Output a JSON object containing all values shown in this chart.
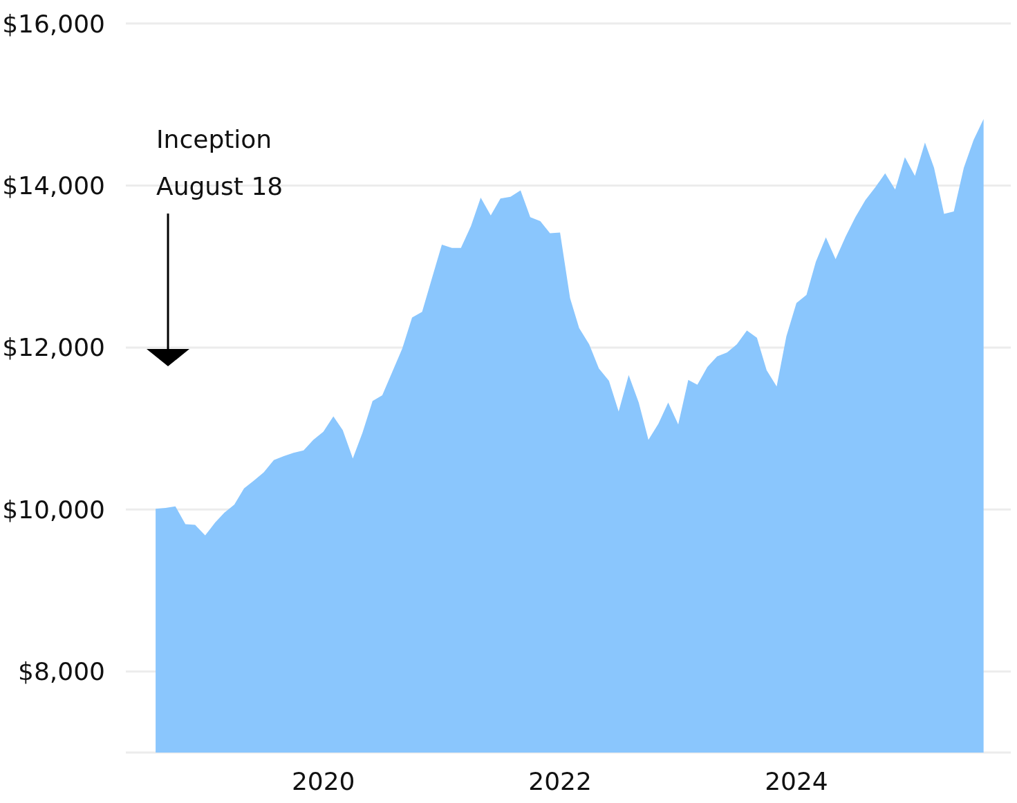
{
  "chart_data": {
    "type": "area",
    "color": "#8ac6fd",
    "x": [
      "2018-08",
      "2018-09",
      "2018-10",
      "2018-11",
      "2018-12",
      "2019-01",
      "2019-02",
      "2019-03",
      "2019-04",
      "2019-05",
      "2019-06",
      "2019-07",
      "2019-08",
      "2019-09",
      "2019-10",
      "2019-11",
      "2019-12",
      "2020-01",
      "2020-02",
      "2020-03",
      "2020-04",
      "2020-05",
      "2020-06",
      "2020-07",
      "2020-08",
      "2020-09",
      "2020-10",
      "2020-11",
      "2020-12",
      "2021-01",
      "2021-02",
      "2021-03",
      "2021-04",
      "2021-05",
      "2021-06",
      "2021-07",
      "2021-08",
      "2021-09",
      "2021-10",
      "2021-11",
      "2021-12",
      "2022-01",
      "2022-02",
      "2022-03",
      "2022-04",
      "2022-05",
      "2022-06",
      "2022-07",
      "2022-08",
      "2022-09",
      "2022-10",
      "2022-11",
      "2022-12",
      "2023-01",
      "2023-02",
      "2023-03",
      "2023-04",
      "2023-05",
      "2023-06",
      "2023-07",
      "2023-08",
      "2023-09",
      "2023-10",
      "2023-11",
      "2023-12",
      "2024-01",
      "2024-02",
      "2024-03",
      "2024-04",
      "2024-05",
      "2024-06",
      "2024-07",
      "2024-08",
      "2024-09",
      "2024-10",
      "2024-11",
      "2024-12",
      "2025-01",
      "2025-02",
      "2025-03",
      "2025-04",
      "2025-05",
      "2025-06",
      "2025-07",
      "2025-08"
    ],
    "values": [
      10010,
      10020,
      10040,
      9820,
      9810,
      9680,
      9840,
      9960,
      10060,
      10260,
      10360,
      10460,
      10610,
      10660,
      10700,
      10730,
      10860,
      10960,
      11150,
      10980,
      10630,
      10950,
      11340,
      11410,
      11700,
      11990,
      12370,
      12440,
      12850,
      13270,
      13230,
      13230,
      13500,
      13850,
      13630,
      13840,
      13860,
      13940,
      13610,
      13560,
      13410,
      13420,
      12610,
      12240,
      12040,
      11740,
      11590,
      11210,
      11660,
      11320,
      10860,
      11060,
      11320,
      11050,
      11600,
      11540,
      11760,
      11890,
      11940,
      12040,
      12210,
      12120,
      11720,
      11520,
      12140,
      12550,
      12650,
      13060,
      13360,
      13090,
      13370,
      13610,
      13820,
      13980,
      14150,
      13950,
      14350,
      14120,
      14530,
      14220,
      13650,
      13680,
      14220,
      14560,
      14820
    ],
    "xlim": [
      "2018-05-01",
      "2025-10-24"
    ],
    "xticks": [
      "2020",
      "2022",
      "2024"
    ],
    "ylim": [
      7000,
      16000
    ],
    "yticks": [
      {
        "value": 8000,
        "label": "$8,000"
      },
      {
        "value": 10000,
        "label": "$10,000"
      },
      {
        "value": 12000,
        "label": "$12,000"
      },
      {
        "value": 14000,
        "label": "$14,000"
      },
      {
        "value": 16000,
        "label": "$16,000"
      }
    ],
    "grid": "y",
    "annotations": [
      "Inception",
      "August 18"
    ]
  }
}
